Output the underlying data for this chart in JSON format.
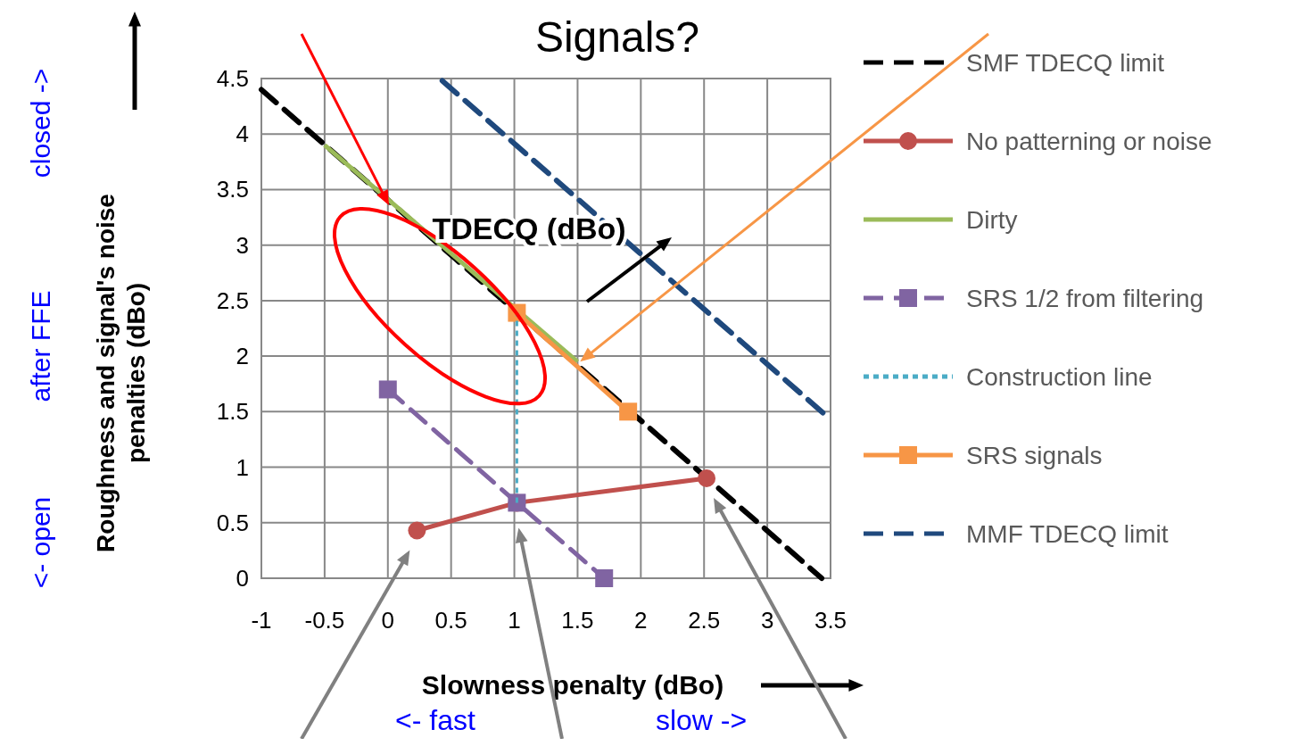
{
  "chart_data": {
    "type": "line",
    "title": "Signals?",
    "xlabel": "Slowness penalty (dBo)",
    "ylabel": "Roughness and signal's noise penalties (dBo)",
    "xlim": [
      -1,
      3.5
    ],
    "xticks": [
      -1,
      -0.5,
      0,
      0.5,
      1,
      1.5,
      2,
      2.5,
      3,
      3.5
    ],
    "ylim": [
      0,
      4.5
    ],
    "yticks": [
      0,
      0.5,
      1,
      1.5,
      2,
      2.5,
      3,
      3.5,
      4,
      4.5
    ],
    "grid": true,
    "legend": "right",
    "series": [
      {
        "name": "SMF TDECQ limit",
        "color": "#000000",
        "line_style": "dashed",
        "marker": "none",
        "x": [
          -1,
          3.43
        ],
        "values": [
          4.4,
          0
        ]
      },
      {
        "name": "No patterning or noise",
        "color": "#c0504d",
        "line_style": "solid",
        "marker": "circle",
        "x": [
          0.23,
          1.02,
          2.52
        ],
        "values": [
          0.43,
          0.68,
          0.9
        ]
      },
      {
        "name": "Dirty",
        "color": "#9bbb59",
        "line_style": "solid",
        "marker": "none",
        "x": [
          -0.5,
          1.5
        ],
        "values": [
          3.9,
          1.95
        ]
      },
      {
        "name": "SRS 1/2 from filtering",
        "color": "#8064a2",
        "line_style": "dashed",
        "marker": "square",
        "x": [
          0,
          1.02,
          1.71
        ],
        "values": [
          1.7,
          0.68,
          0
        ]
      },
      {
        "name": "Construction line",
        "color": "#4bacc6",
        "line_style": "dotted",
        "marker": "none",
        "x": [
          1.02,
          1.02
        ],
        "values": [
          0.68,
          2.39
        ]
      },
      {
        "name": "SRS signals",
        "color": "#f79646",
        "line_style": "solid",
        "marker": "square",
        "x": [
          1.02,
          1.9
        ],
        "values": [
          2.39,
          1.5
        ]
      },
      {
        "name": "MMF TDECQ limit",
        "color": "#1f497d",
        "line_style": "dashed",
        "marker": "none",
        "x": [
          0.43,
          3.46
        ],
        "values": [
          4.48,
          1.47
        ]
      }
    ],
    "annotations": [
      "TDECQ (dBo)",
      "<- open",
      "after FFE",
      "closed ->",
      "<- fast",
      "slow ->"
    ]
  }
}
